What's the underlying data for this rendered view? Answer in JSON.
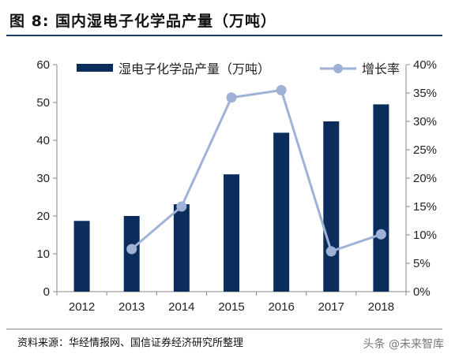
{
  "header": {
    "title": "图 8:  国内湿电子化学品产量（万吨）"
  },
  "footer": {
    "source": "资料来源：华经情报网、国信证券经济研究所整理",
    "watermark": "头条 @未来智库"
  },
  "colors": {
    "bar": "#0b2d5c",
    "line": "#9fb1d6",
    "axis": "#888888"
  },
  "chart_data": {
    "type": "bar",
    "categories": [
      "2012",
      "2013",
      "2014",
      "2015",
      "2016",
      "2017",
      "2018"
    ],
    "series": [
      {
        "name": "湿电子化学品产量（万吨）",
        "type": "bar",
        "axis": "left",
        "values": [
          18.7,
          20.0,
          23.1,
          31.0,
          42.0,
          45.0,
          49.5
        ]
      },
      {
        "name": "增长率",
        "type": "line",
        "axis": "right",
        "values": [
          null,
          0.075,
          0.15,
          0.342,
          0.355,
          0.071,
          0.101
        ]
      }
    ],
    "yticks_left": [
      "0",
      "10",
      "20",
      "30",
      "40",
      "50",
      "60"
    ],
    "yticks_right": [
      "0%",
      "5%",
      "10%",
      "15%",
      "20%",
      "25%",
      "30%",
      "35%",
      "40%"
    ],
    "ylim_left": [
      0,
      60
    ],
    "ylim_right": [
      0,
      0.4
    ],
    "legend_position": "top",
    "grid": false
  }
}
